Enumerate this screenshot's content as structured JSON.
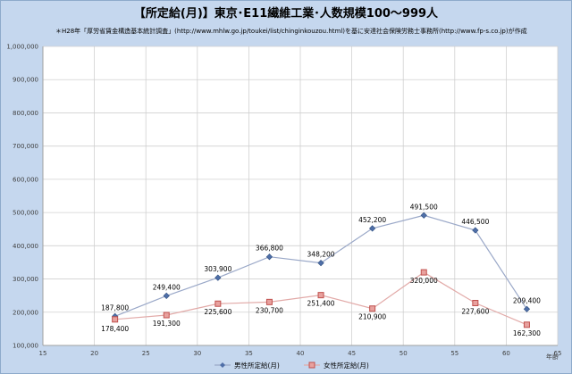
{
  "title": "【所定給(月)】東京･E11繊維工業･人数規模100～999人",
  "source": "＊H28年「厚労省賃金構造基本統計調査」(http://www.mhlw.go.jp/toukei/list/chinginkouzou.html)を基に安達社会保険労務士事務所(http://www.fp-s.co.jp)が作成",
  "chart_data": {
    "type": "line",
    "xlabel": "年齢",
    "ylabel": "",
    "xlim": [
      15,
      65
    ],
    "ylim": [
      100000,
      1000000
    ],
    "xticks": [
      15,
      20,
      25,
      30,
      35,
      40,
      45,
      50,
      55,
      60,
      65
    ],
    "yticks": [
      100000,
      200000,
      300000,
      400000,
      500000,
      600000,
      700000,
      800000,
      900000,
      1000000
    ],
    "xtick_labels": [
      "15",
      "20",
      "25",
      "30",
      "35",
      "40",
      "45",
      "50",
      "55",
      "60",
      "65"
    ],
    "ytick_labels": [
      "100,000",
      "200,000",
      "300,000",
      "400,000",
      "500,000",
      "600,000",
      "700,000",
      "800,000",
      "900,000",
      "1,000,000"
    ],
    "grid": true,
    "legend_position": "bottom",
    "x": [
      22,
      27,
      32,
      37,
      42,
      47,
      52,
      57,
      62
    ],
    "series": [
      {
        "name": "男性所定給(月)",
        "color": "#4f6fa8",
        "marker": "diamond",
        "values": [
          187800,
          249400,
          303900,
          366800,
          348200,
          452200,
          491500,
          446500,
          209400
        ],
        "labels": [
          "187,800",
          "249,400",
          "303,900",
          "366,800",
          "348,200",
          "452,200",
          "491,500",
          "446,500",
          "209,400"
        ]
      },
      {
        "name": "女性所定給(月)",
        "color": "#c0504d",
        "marker": "square",
        "values": [
          178400,
          191300,
          225600,
          230700,
          251400,
          210900,
          320000,
          227600,
          162300
        ],
        "labels": [
          "178,400",
          "191,300",
          "225,600",
          "230,700",
          "251,400",
          "210,900",
          "320,000",
          "227,600",
          "162,300"
        ]
      }
    ]
  }
}
